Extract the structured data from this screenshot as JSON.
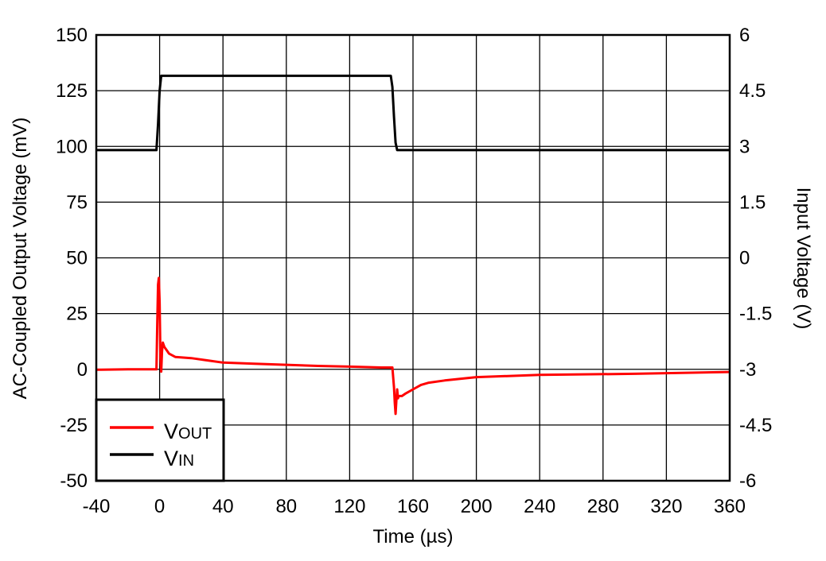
{
  "chart_data": {
    "type": "line",
    "xlabel": "Time (µs)",
    "ylabel": "AC-Coupled Output Voltage (mV)",
    "y2label": "Input Voltage (V)",
    "xlim": [
      -40,
      360
    ],
    "ylim": [
      -50,
      150
    ],
    "y2lim": [
      -6,
      6
    ],
    "xticks": [
      "-40",
      "0",
      "40",
      "80",
      "120",
      "160",
      "200",
      "240",
      "280",
      "320",
      "360"
    ],
    "yticks": [
      "150",
      "125",
      "100",
      "75",
      "50",
      "25",
      "0",
      "-25",
      "-50"
    ],
    "y2ticks": [
      "6",
      "4.5",
      "3",
      "1.5",
      "0",
      "-1.5",
      "-3",
      "-4.5",
      "-6"
    ],
    "grid": true,
    "legend_position": "bottom-left",
    "series": [
      {
        "name": "VOUT",
        "label_main": "V",
        "label_sub": "OUT",
        "axis": "left",
        "color": "#ff0000",
        "x": [
          -40,
          -20,
          -2,
          -1.5,
          -1,
          -0.5,
          0,
          0.5,
          1,
          1.5,
          2,
          3,
          4,
          6,
          10,
          20,
          30,
          40,
          60,
          80,
          100,
          120,
          140,
          147,
          148,
          148.5,
          149,
          149.5,
          150,
          150.5,
          151,
          153,
          155,
          160,
          165,
          170,
          180,
          200,
          240,
          300,
          360
        ],
        "y": [
          -0.2,
          0,
          0,
          20,
          38,
          41,
          30,
          5,
          -1,
          8,
          12,
          10,
          9,
          7,
          5.5,
          5,
          4,
          3,
          2.5,
          2,
          1.5,
          1.2,
          0.8,
          0.8,
          -8,
          -15,
          -20,
          -14,
          -9,
          -13,
          -12,
          -12,
          -11,
          -9,
          -7,
          -6,
          -5,
          -3.5,
          -2.5,
          -2,
          -1.2
        ]
      },
      {
        "name": "VIN",
        "label_main": "V",
        "label_sub": "IN",
        "axis": "right",
        "color": "#000000",
        "x": [
          -40,
          -2,
          -1,
          0,
          1,
          146,
          147,
          148,
          149,
          150,
          360
        ],
        "y": [
          2.9,
          2.9,
          3.6,
          4.5,
          4.9,
          4.9,
          4.6,
          3.8,
          3.1,
          2.9,
          2.9
        ]
      }
    ]
  }
}
